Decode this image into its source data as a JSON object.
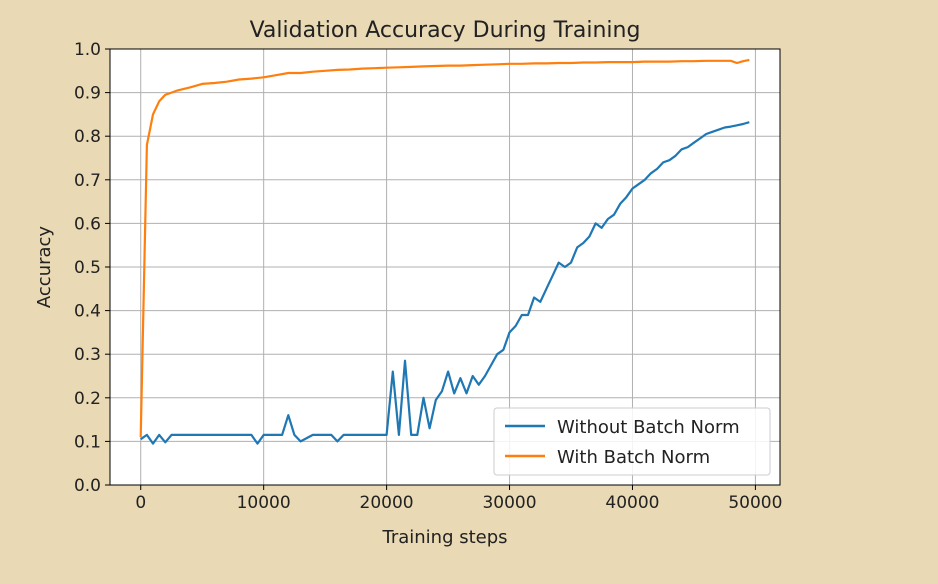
{
  "colors": {
    "background": "#e9d9b4",
    "plot_background": "#ffffff",
    "grid": "#b0b0b0",
    "series_without": "#1f77b4",
    "series_with": "#ff7f0e"
  },
  "chart_data": {
    "type": "line",
    "title": "Validation Accuracy During Training",
    "xlabel": "Training steps",
    "ylabel": "Accuracy",
    "xlim": [
      -2500,
      52000
    ],
    "ylim": [
      0,
      1.0
    ],
    "xticks": [
      0,
      10000,
      20000,
      30000,
      40000,
      50000
    ],
    "xtick_labels": [
      "0",
      "10000",
      "20000",
      "30000",
      "40000",
      "50000"
    ],
    "yticks": [
      0,
      0.1,
      0.2,
      0.3,
      0.4,
      0.5,
      0.6,
      0.7,
      0.8,
      0.9,
      1.0
    ],
    "ytick_labels": [
      "0.0",
      "0.1",
      "0.2",
      "0.3",
      "0.4",
      "0.5",
      "0.6",
      "0.7",
      "0.8",
      "0.9",
      "1.0"
    ],
    "grid": true,
    "legend_position": "lower-right",
    "series": [
      {
        "name": "Without Batch Norm",
        "color": "#1f77b4",
        "x": [
          0,
          500,
          1000,
          1500,
          2000,
          2500,
          3000,
          4000,
          5000,
          6000,
          7000,
          8000,
          8500,
          9000,
          9500,
          10000,
          10500,
          11000,
          11500,
          12000,
          12500,
          13000,
          14000,
          15000,
          15500,
          16000,
          16500,
          17000,
          18000,
          19000,
          20000,
          20500,
          21000,
          21500,
          22000,
          22500,
          23000,
          23500,
          24000,
          24500,
          25000,
          25500,
          26000,
          26500,
          27000,
          27500,
          28000,
          28500,
          29000,
          29500,
          30000,
          30500,
          31000,
          31500,
          32000,
          32500,
          33000,
          33500,
          34000,
          34500,
          35000,
          35500,
          36000,
          36500,
          37000,
          37500,
          38000,
          38500,
          39000,
          39500,
          40000,
          40500,
          41000,
          41500,
          42000,
          42500,
          43000,
          43500,
          44000,
          44500,
          45000,
          45500,
          46000,
          46500,
          47000,
          47500,
          48000,
          48500,
          49000,
          49500
        ],
        "y": [
          0.105,
          0.115,
          0.095,
          0.115,
          0.098,
          0.115,
          0.115,
          0.115,
          0.115,
          0.115,
          0.115,
          0.115,
          0.115,
          0.115,
          0.095,
          0.115,
          0.115,
          0.115,
          0.115,
          0.16,
          0.115,
          0.1,
          0.115,
          0.115,
          0.115,
          0.1,
          0.115,
          0.115,
          0.115,
          0.115,
          0.115,
          0.26,
          0.115,
          0.285,
          0.115,
          0.115,
          0.2,
          0.13,
          0.195,
          0.215,
          0.26,
          0.21,
          0.245,
          0.21,
          0.25,
          0.23,
          0.25,
          0.275,
          0.3,
          0.31,
          0.35,
          0.365,
          0.39,
          0.39,
          0.43,
          0.42,
          0.45,
          0.48,
          0.51,
          0.5,
          0.51,
          0.545,
          0.555,
          0.57,
          0.6,
          0.59,
          0.61,
          0.62,
          0.645,
          0.66,
          0.68,
          0.69,
          0.7,
          0.715,
          0.725,
          0.74,
          0.745,
          0.755,
          0.77,
          0.775,
          0.785,
          0.795,
          0.805,
          0.81,
          0.815,
          0.82,
          0.822,
          0.825,
          0.828,
          0.832
        ]
      },
      {
        "name": "With Batch Norm",
        "color": "#ff7f0e",
        "x": [
          0,
          500,
          1000,
          1500,
          2000,
          2500,
          3000,
          4000,
          5000,
          6000,
          7000,
          8000,
          9000,
          10000,
          11000,
          12000,
          13000,
          14000,
          15000,
          16000,
          17000,
          18000,
          19000,
          20000,
          21000,
          22000,
          23000,
          24000,
          25000,
          26000,
          27000,
          28000,
          29000,
          30000,
          31000,
          32000,
          33000,
          34000,
          35000,
          36000,
          37000,
          38000,
          39000,
          40000,
          41000,
          42000,
          43000,
          44000,
          45000,
          46000,
          47000,
          48000,
          48500,
          49000,
          49500
        ],
        "y": [
          0.11,
          0.78,
          0.85,
          0.88,
          0.895,
          0.9,
          0.905,
          0.912,
          0.92,
          0.922,
          0.925,
          0.93,
          0.932,
          0.935,
          0.94,
          0.945,
          0.945,
          0.948,
          0.95,
          0.952,
          0.953,
          0.955,
          0.956,
          0.957,
          0.958,
          0.959,
          0.96,
          0.961,
          0.962,
          0.962,
          0.963,
          0.964,
          0.965,
          0.966,
          0.966,
          0.967,
          0.967,
          0.968,
          0.968,
          0.969,
          0.969,
          0.97,
          0.97,
          0.97,
          0.971,
          0.971,
          0.971,
          0.972,
          0.972,
          0.973,
          0.973,
          0.973,
          0.968,
          0.972,
          0.975
        ]
      }
    ]
  }
}
